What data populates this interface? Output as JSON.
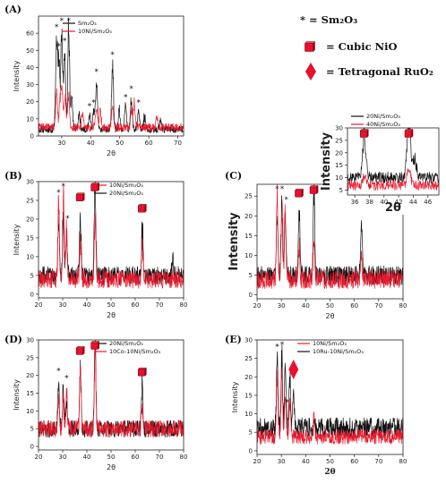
{
  "key": {
    "star_text": "* = Sm₂O₃",
    "nio_text": "= Cubic NiO",
    "ruo2_text": "= Tetragonal RuO₂",
    "nio_color": "#e8112d",
    "ruo2_color": "#e8112d"
  },
  "colors": {
    "black": "#111111",
    "red": "#e8192c",
    "gray": "#555555"
  },
  "chart_data": [
    {
      "id": "A",
      "panel_label": "(A)",
      "type": "line",
      "xlabel": "2θ",
      "ylabel": "Intensity",
      "xlim": [
        22,
        72
      ],
      "ylim": [
        0,
        70
      ],
      "xticks": [
        "30",
        "40",
        "50",
        "60",
        "70"
      ],
      "yticks": [
        "0",
        "10",
        "20",
        "30",
        "40",
        "50",
        "60"
      ],
      "legend": [
        "Sm₂O₃",
        "10Ni/Sm₂O₃"
      ],
      "series": [
        {
          "name": "Sm₂O₃",
          "color": "black",
          "baseline": 3,
          "noise": 2.5,
          "peaks": [
            [
              28.2,
              56
            ],
            [
              29.0,
              45
            ],
            [
              30.0,
              60
            ],
            [
              31.0,
              48
            ],
            [
              32.4,
              64
            ],
            [
              33.5,
              20
            ],
            [
              36.0,
              10
            ],
            [
              39.6,
              10
            ],
            [
              41.0,
              12
            ],
            [
              42.0,
              30
            ],
            [
              47.5,
              40
            ],
            [
              49.8,
              12
            ],
            [
              52.0,
              15
            ],
            [
              54.0,
              20
            ],
            [
              56.5,
              12
            ],
            [
              58.5,
              8
            ],
            [
              64.0,
              6
            ]
          ]
        },
        {
          "name": "10Ni/Sm₂O₃",
          "color": "red",
          "baseline": 4,
          "noise": 3,
          "peaks": [
            [
              28.2,
              22
            ],
            [
              29.5,
              20
            ],
            [
              30.2,
              23
            ],
            [
              31.2,
              18
            ],
            [
              32.4,
              20
            ],
            [
              37.2,
              9
            ],
            [
              42.0,
              12
            ],
            [
              43.3,
              10
            ],
            [
              47.5,
              13
            ],
            [
              54.0,
              11
            ],
            [
              55.0,
              14
            ],
            [
              62.8,
              7
            ]
          ]
        }
      ],
      "stars": [
        28.2,
        29.0,
        30.0,
        31.0,
        32.4,
        39.6,
        41.0,
        42.0,
        47.5,
        52.0,
        54.0,
        56.5
      ]
    },
    {
      "id": "B",
      "panel_label": "(B)",
      "type": "line",
      "xlabel": "2θ",
      "ylabel": "Intensity",
      "xlim": [
        20,
        80
      ],
      "ylim": [
        -1,
        30
      ],
      "xticks": [
        "20",
        "30",
        "40",
        "50",
        "60",
        "70",
        "80"
      ],
      "yticks": [
        "0",
        "5",
        "10",
        "15",
        "20",
        "25",
        "30"
      ],
      "legend": [
        "10Ni/Sm₂O₃",
        "20Ni/Sm₂O₃"
      ],
      "series": [
        {
          "name": "20Ni/Sm₂O₃",
          "color": "black",
          "baseline": 4,
          "noise": 3,
          "peaks": [
            [
              28.3,
              16
            ],
            [
              30.2,
              18
            ],
            [
              31.6,
              12
            ],
            [
              37.3,
              18
            ],
            [
              43.4,
              27
            ],
            [
              62.9,
              15
            ],
            [
              75.5,
              6
            ]
          ]
        },
        {
          "name": "10Ni/Sm₂O₃",
          "color": "red",
          "baseline": 3,
          "noise": 3,
          "peaks": [
            [
              28.3,
              21
            ],
            [
              30.3,
              23
            ],
            [
              31.6,
              14
            ],
            [
              37.3,
              11
            ],
            [
              43.4,
              17
            ],
            [
              62.9,
              9
            ]
          ]
        }
      ],
      "stars": [
        28.3,
        30.3,
        32.0
      ],
      "nio": [
        37.3,
        43.4,
        62.9
      ]
    },
    {
      "id": "C",
      "panel_label": "(C)",
      "type": "line",
      "xlabel": "2θ",
      "ylabel": "Intensity",
      "xlim": [
        20,
        80
      ],
      "ylim": [
        -1,
        28
      ],
      "xticks": [
        "20",
        "30",
        "40",
        "50",
        "60",
        "70",
        "80"
      ],
      "yticks": [
        "0",
        "5",
        "10",
        "15",
        "20",
        "25"
      ],
      "legend": [
        "20Ni/Sm₂O₃",
        "40Ni/Sm₂O₃"
      ],
      "series": [
        {
          "name": "20Ni/Sm₂O₃",
          "color": "black",
          "baseline": 4,
          "noise": 3,
          "peaks": [
            [
              28.3,
              17
            ],
            [
              30.2,
              19
            ],
            [
              31.6,
              17
            ],
            [
              37.3,
              18
            ],
            [
              43.4,
              25
            ],
            [
              62.9,
              15
            ]
          ]
        },
        {
          "name": "40Ni/Sm₂O₃",
          "color": "red",
          "baseline": 3,
          "noise": 3,
          "peaks": [
            [
              28.3,
              22
            ],
            [
              30.3,
              24
            ],
            [
              31.6,
              16
            ],
            [
              37.3,
              9
            ],
            [
              43.4,
              10
            ],
            [
              62.9,
              7
            ]
          ]
        }
      ],
      "stars": [
        28.3,
        30.3,
        32.0
      ],
      "nio": [
        37.3,
        43.4,
        62.9
      ]
    },
    {
      "id": "C-inset",
      "panel_label": "",
      "type": "line",
      "xlabel": "2θ",
      "ylabel": "Intensity",
      "xlim": [
        35,
        47.5
      ],
      "ylim": [
        3,
        30
      ],
      "xticks": [
        "36",
        "38",
        "40",
        "42",
        "44",
        "46"
      ],
      "yticks": [
        "5",
        "10",
        "15",
        "20",
        "25",
        "30"
      ],
      "legend": [
        "20Ni/Sm₂O₃",
        "40Ni/Sm₂O₃"
      ],
      "series": [
        {
          "name": "20Ni/Sm₂O₃",
          "color": "black",
          "baseline": 9,
          "noise": 3,
          "peaks": [
            [
              37.3,
              17
            ],
            [
              43.4,
              24
            ],
            [
              44.2,
              8
            ]
          ]
        },
        {
          "name": "40Ni/Sm₂O₃",
          "color": "red",
          "baseline": 6,
          "noise": 2.5,
          "peaks": [
            [
              37.3,
              4
            ],
            [
              43.4,
              7
            ]
          ]
        }
      ],
      "nio": [
        37.3,
        43.4
      ]
    },
    {
      "id": "D",
      "panel_label": "(D)",
      "type": "line",
      "xlabel": "2θ",
      "ylabel": "Intensity",
      "xlim": [
        20,
        80
      ],
      "ylim": [
        -1,
        30
      ],
      "xticks": [
        "20",
        "30",
        "40",
        "50",
        "60",
        "70",
        "80"
      ],
      "yticks": [
        "0",
        "5",
        "10",
        "15",
        "20",
        "25",
        "30"
      ],
      "legend": [
        "20Ni/Sm₂O₃",
        "10Co-10Ni/Sm₂O₃"
      ],
      "series": [
        {
          "name": "20Ni/Sm₂O₃",
          "color": "black",
          "baseline": 4,
          "noise": 3,
          "peaks": [
            [
              28.3,
              14
            ],
            [
              30.2,
              13
            ],
            [
              31.6,
              10
            ],
            [
              37.3,
              17
            ],
            [
              43.4,
              27
            ],
            [
              62.9,
              13
            ]
          ]
        },
        {
          "name": "10Co-10Ni/Sm₂O₃",
          "color": "red",
          "baseline": 4,
          "noise": 3,
          "peaks": [
            [
              28.3,
              10
            ],
            [
              30.2,
              9
            ],
            [
              31.6,
              12
            ],
            [
              37.3,
              19
            ],
            [
              43.4,
              22
            ],
            [
              62.9,
              8
            ]
          ]
        }
      ],
      "stars": [
        28.3,
        31.6
      ],
      "nio": [
        37.3,
        43.4,
        62.9
      ]
    },
    {
      "id": "E",
      "panel_label": "(E)",
      "type": "line",
      "xlabel": "2θ",
      "ylabel": "Intensity",
      "xlim": [
        20,
        80
      ],
      "ylim": [
        -1,
        30
      ],
      "xticks": [
        "20",
        "30",
        "40",
        "50",
        "60",
        "70",
        "80"
      ],
      "yticks": [
        "0",
        "5",
        "10",
        "15",
        "20",
        "25",
        "30"
      ],
      "legend": [
        "10Ni/Sm₂O₃",
        "10Ru-10Ni/Sm₂O₃"
      ],
      "series": [
        {
          "name": "10Ru-10Ni/Sm₂O₃",
          "color": "black",
          "baseline": 5,
          "noise": 3.5,
          "peaks": [
            [
              28.3,
              20
            ],
            [
              30.2,
              22
            ],
            [
              31.6,
              18
            ],
            [
              33.5,
              15
            ],
            [
              35.0,
              10
            ]
          ]
        },
        {
          "name": "10Ni/Sm₂O₃",
          "color": "red",
          "baseline": 3,
          "noise": 2.5,
          "peaks": [
            [
              28.3,
              16
            ],
            [
              30.2,
              18
            ],
            [
              31.6,
              12
            ],
            [
              33.5,
              10
            ],
            [
              43.4,
              6
            ]
          ]
        }
      ],
      "stars": [
        28.3,
        30.3,
        32.4
      ],
      "ruo2": [
        35.0
      ]
    }
  ]
}
